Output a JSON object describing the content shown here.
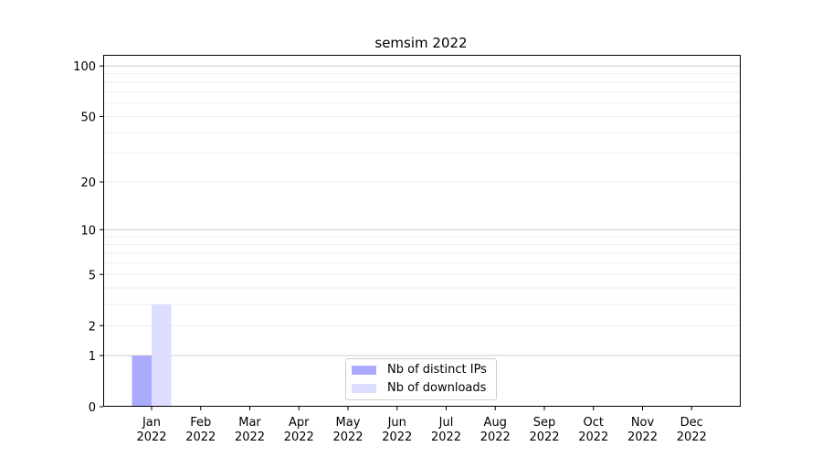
{
  "chart_data": {
    "type": "bar",
    "title": "semsim 2022",
    "xlabel": "",
    "ylabel": "",
    "y_scale": "log(1+y)",
    "ylim": [
      0,
      116
    ],
    "y_ticks": [
      0,
      1,
      2,
      5,
      10,
      20,
      50,
      100
    ],
    "y_minor_grid": [
      2,
      3,
      4,
      5,
      6,
      7,
      8,
      9,
      20,
      30,
      40,
      50,
      60,
      70,
      80,
      90
    ],
    "y_major_grid": [
      1,
      10,
      100
    ],
    "grid": true,
    "legend": "bottom-center",
    "categories": [
      "Jan\n2022",
      "Feb\n2022",
      "Mar\n2022",
      "Apr\n2022",
      "May\n2022",
      "Jun\n2022",
      "Jul\n2022",
      "Aug\n2022",
      "Sep\n2022",
      "Oct\n2022",
      "Nov\n2022",
      "Dec\n2022"
    ],
    "series": [
      {
        "name": "Nb of distinct IPs",
        "color": "#aaaaff",
        "values": [
          1,
          0,
          0,
          0,
          0,
          0,
          0,
          0,
          0,
          0,
          0,
          0
        ]
      },
      {
        "name": "Nb of downloads",
        "color": "#ddddff",
        "values": [
          3,
          0,
          0,
          0,
          0,
          0,
          0,
          0,
          0,
          0,
          0,
          0
        ]
      }
    ]
  }
}
